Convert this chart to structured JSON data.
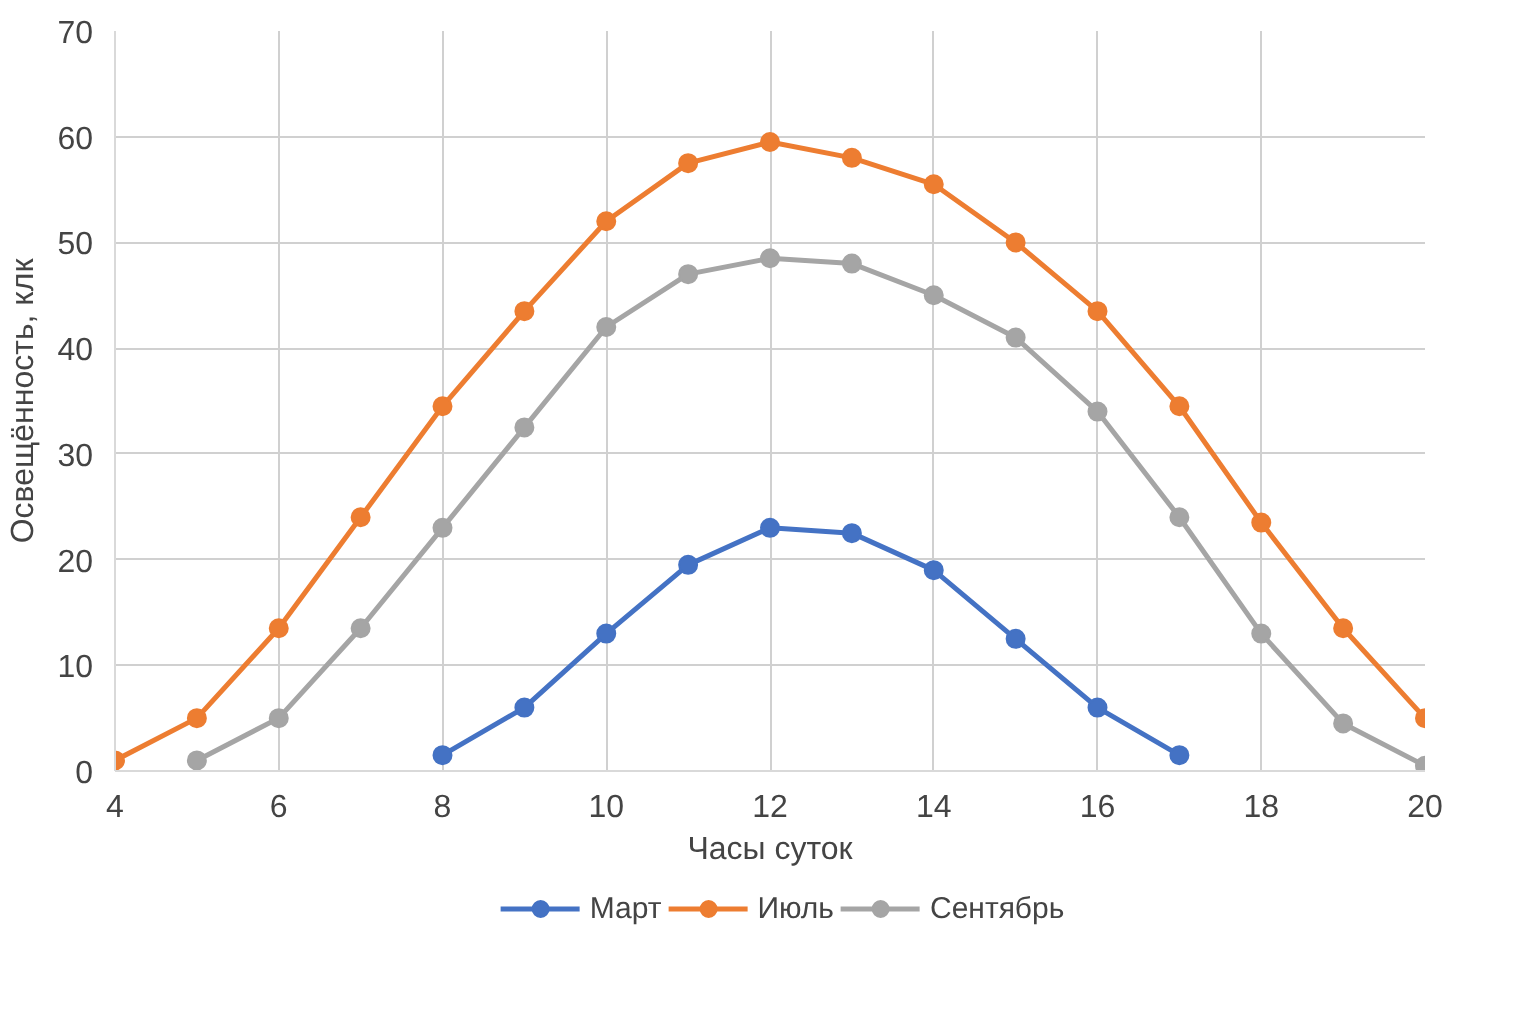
{
  "chart_data": {
    "type": "line",
    "xlabel": "Часы суток",
    "ylabel": "Освещённость, клк",
    "xlim": [
      4,
      20
    ],
    "xticks": [
      4,
      6,
      8,
      10,
      12,
      14,
      16,
      18,
      20
    ],
    "ylim": [
      0,
      70
    ],
    "yticks": [
      0,
      10,
      20,
      30,
      40,
      50,
      60,
      70
    ],
    "grid": true,
    "legend": "bottom",
    "marker": "circle",
    "line_style": "solid",
    "series": [
      {
        "name": "Март",
        "color": "#4472c4",
        "x": [
          8,
          9,
          10,
          11,
          12,
          13,
          14,
          15,
          16,
          17
        ],
        "values": [
          1.5,
          6,
          13,
          19.5,
          23,
          22.5,
          19,
          12.5,
          6,
          1.5
        ]
      },
      {
        "name": "Июль",
        "color": "#ed7d31",
        "x": [
          4,
          5,
          6,
          7,
          8,
          9,
          10,
          11,
          12,
          13,
          14,
          15,
          16,
          17,
          18,
          19,
          20
        ],
        "values": [
          1,
          5,
          13.5,
          24,
          34.5,
          43.5,
          52,
          57.5,
          59.5,
          58,
          55.5,
          50,
          43.5,
          34.5,
          23.5,
          13.5,
          5
        ]
      },
      {
        "name": "Сентябрь",
        "color": "#a5a5a5",
        "x": [
          5,
          6,
          7,
          8,
          9,
          10,
          11,
          12,
          13,
          14,
          15,
          16,
          17,
          18,
          19,
          20
        ],
        "values": [
          1,
          5,
          13.5,
          23,
          32.5,
          42,
          47,
          48.5,
          48,
          45,
          41,
          34,
          24,
          13,
          4.5,
          0.5
        ]
      }
    ]
  }
}
